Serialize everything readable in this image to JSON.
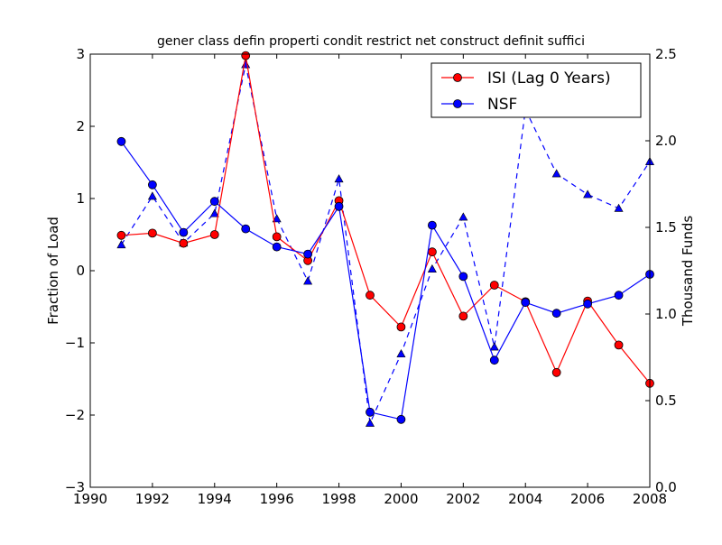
{
  "chart_data": {
    "type": "line",
    "title": "gener class defin properti condit restrict net construct definit suffici",
    "xlabel": "",
    "ylabel": "Fraction of Load",
    "y2label": "Thousand Funds",
    "xlim": [
      1990,
      2008
    ],
    "ylim": [
      -3,
      3
    ],
    "y2lim": [
      0,
      2.5
    ],
    "x_ticks": [
      1990,
      1992,
      1994,
      1996,
      1998,
      2000,
      2002,
      2004,
      2006,
      2008
    ],
    "x_tick_labels": [
      "1990",
      "1992",
      "1994",
      "1996",
      "1998",
      "2000",
      "2002",
      "2004",
      "2006",
      "2008"
    ],
    "y_ticks": [
      -3,
      -2,
      -1,
      0,
      1,
      2,
      3
    ],
    "y_tick_labels": [
      "−3",
      "−2",
      "−1",
      "0",
      "1",
      "2",
      "3"
    ],
    "y2_ticks": [
      0,
      0.5,
      1.0,
      1.5,
      2.0,
      2.5
    ],
    "y2_tick_labels": [
      "0.0",
      "0.5",
      "1.0",
      "1.5",
      "2.0",
      "2.5"
    ],
    "legend_position": "top-right",
    "series": [
      {
        "name": "ISI (Lag 0 Years)",
        "axis": "left",
        "color": "#ff0000",
        "line_style": "solid",
        "marker": "circle",
        "in_legend": true,
        "x": [
          1991,
          1992,
          1993,
          1994,
          1995,
          1996,
          1997,
          1998,
          1999,
          2000,
          2001,
          2002,
          2003,
          2004,
          2005,
          2006,
          2007,
          2008
        ],
        "values": [
          0.49,
          0.52,
          0.38,
          0.5,
          2.98,
          0.47,
          0.14,
          0.97,
          -0.34,
          -0.78,
          0.26,
          -0.63,
          -0.2,
          -0.43,
          -1.41,
          -0.42,
          -1.03,
          -1.56
        ]
      },
      {
        "name": "NSF",
        "axis": "left",
        "color": "#0000ff",
        "line_style": "solid",
        "marker": "circle",
        "in_legend": true,
        "x": [
          1991,
          1992,
          1993,
          1994,
          1995,
          1996,
          1997,
          1998,
          1999,
          2000,
          2001,
          2002,
          2003,
          2004,
          2005,
          2006,
          2007,
          2008
        ],
        "values": [
          1.79,
          1.19,
          0.53,
          0.96,
          0.58,
          0.33,
          0.23,
          0.89,
          -1.96,
          -2.06,
          0.63,
          -0.08,
          -1.24,
          -0.44,
          -0.59,
          -0.46,
          -0.34,
          -0.05
        ]
      },
      {
        "name": "Thousand Funds",
        "axis": "right",
        "color": "#0000ff",
        "line_style": "dashed",
        "marker": "triangle",
        "in_legend": false,
        "x": [
          1991,
          1992,
          1993,
          1994,
          1995,
          1996,
          1997,
          1998,
          1999,
          2000,
          2001,
          2002,
          2003,
          2004,
          2005,
          2006,
          2007,
          2008
        ],
        "values": [
          1.4,
          1.68,
          1.41,
          1.58,
          2.44,
          1.55,
          1.19,
          1.78,
          0.37,
          0.77,
          1.26,
          1.56,
          0.81,
          2.18,
          1.81,
          1.69,
          1.61,
          1.88
        ]
      }
    ]
  }
}
